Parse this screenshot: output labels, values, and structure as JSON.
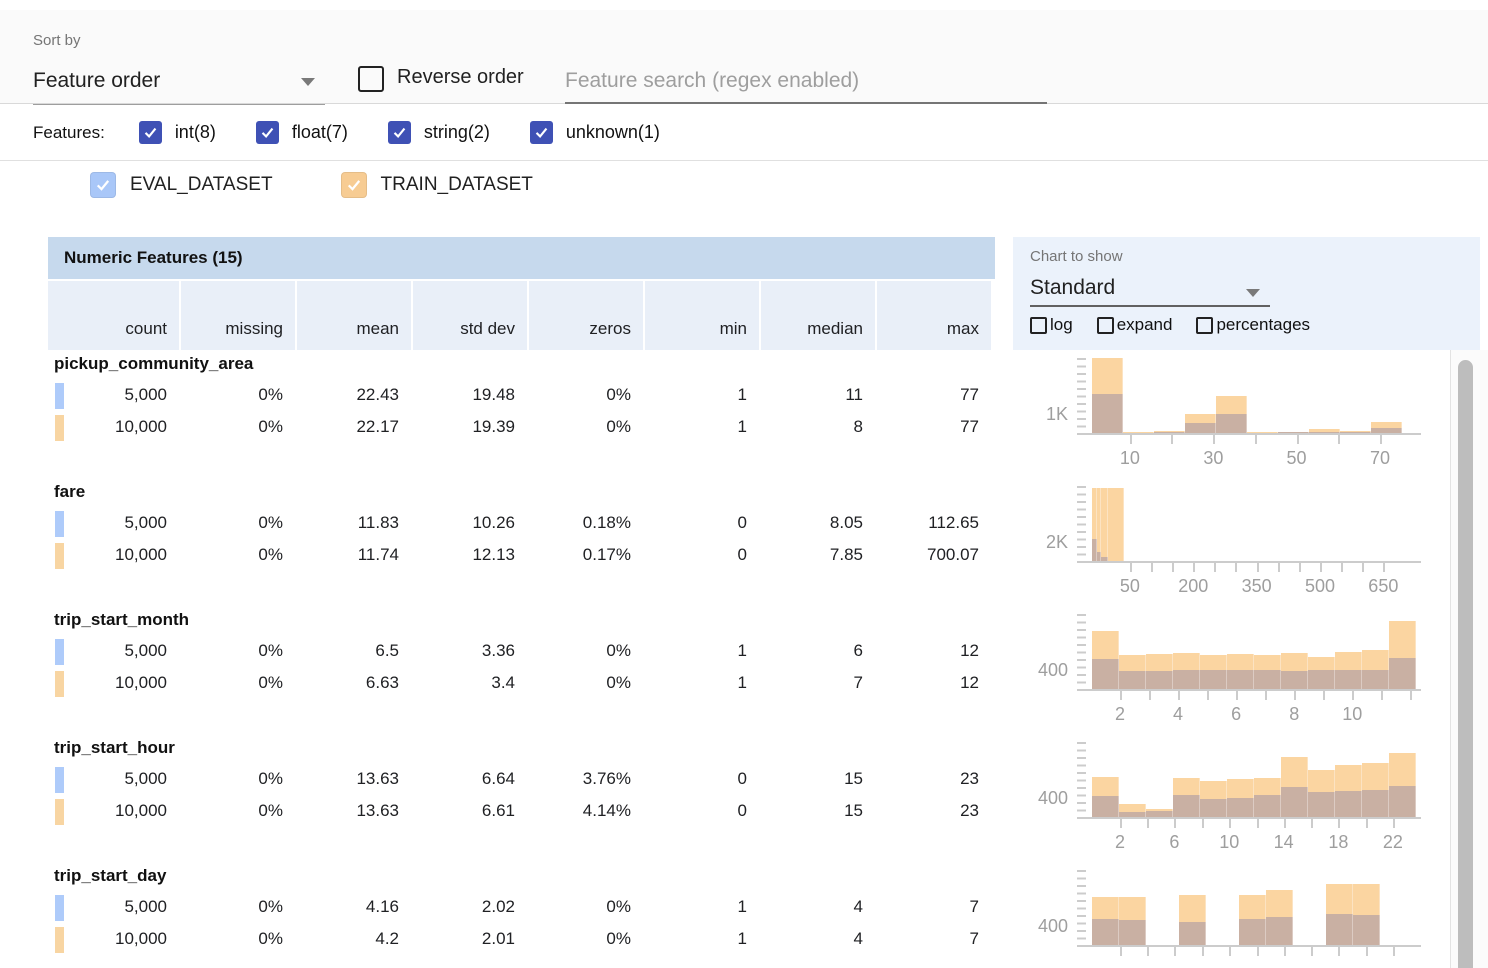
{
  "sort": {
    "label": "Sort by",
    "value": "Feature order",
    "reverse_label": "Reverse order",
    "search_placeholder": "Feature search (regex enabled)"
  },
  "feature_filters": {
    "label": "Features:",
    "items": [
      {
        "label": "int(8)",
        "checked": true
      },
      {
        "label": "float(7)",
        "checked": true
      },
      {
        "label": "string(2)",
        "checked": true
      },
      {
        "label": "unknown(1)",
        "checked": true
      }
    ]
  },
  "datasets": [
    {
      "name": "EVAL_DATASET",
      "color": "#a9c7f8",
      "checked": true
    },
    {
      "name": "TRAIN_DATASET",
      "color": "#f7cc93",
      "checked": true
    }
  ],
  "table": {
    "title": "Numeric Features (15)",
    "columns": [
      "count",
      "missing",
      "mean",
      "std dev",
      "zeros",
      "min",
      "median",
      "max"
    ]
  },
  "chart_controls": {
    "label": "Chart to show",
    "selected": "Standard",
    "options": [
      {
        "label": "log",
        "checked": false
      },
      {
        "label": "expand",
        "checked": false
      },
      {
        "label": "percentages",
        "checked": false
      }
    ]
  },
  "features": [
    {
      "name": "pickup_community_area",
      "stats": [
        [
          "5,000",
          "0%",
          "22.43",
          "19.48",
          "0%",
          "1",
          "11",
          "77"
        ],
        [
          "10,000",
          "0%",
          "22.17",
          "19.39",
          "0%",
          "1",
          "8",
          "77"
        ]
      ],
      "chart": {
        "y_axis_label": "1K",
        "x_tick_positions": [
          0.133,
          0.259,
          0.386,
          0.512,
          0.638,
          0.765,
          0.891
        ],
        "x_tick_labels": [
          "10",
          "",
          "30",
          "",
          "50",
          "",
          "70"
        ],
        "bars": [
          [
            0.018,
            0,
            0
          ],
          [
            0.094,
            1.0,
            0.52
          ],
          [
            0.094,
            0.012,
            0.006
          ],
          [
            0.094,
            0.03,
            0.015
          ],
          [
            0.094,
            0.26,
            0.13
          ],
          [
            0.094,
            0.5,
            0.25
          ],
          [
            0.094,
            0.012,
            0.006
          ],
          [
            0.094,
            0.018,
            0.008
          ],
          [
            0.094,
            0.05,
            0.016
          ],
          [
            0.094,
            0.022,
            0.01
          ],
          [
            0.094,
            0.15,
            0.07
          ]
        ]
      }
    },
    {
      "name": "fare",
      "stats": [
        [
          "5,000",
          "0%",
          "11.83",
          "10.26",
          "0.18%",
          "0",
          "8.05",
          "112.65"
        ],
        [
          "10,000",
          "0%",
          "11.74",
          "12.13",
          "0.17%",
          "0",
          "7.85",
          "700.07"
        ]
      ],
      "chart": {
        "y_axis_label": "2K",
        "x_tick_positions": [
          0.133,
          0.197,
          0.261,
          0.325,
          0.389,
          0.453,
          0.517,
          0.581,
          0.645,
          0.709,
          0.773,
          0.837,
          0.901
        ],
        "x_tick_labels": [
          "50",
          "",
          "",
          "200",
          "",
          "",
          "350",
          "",
          "",
          "500",
          "",
          "",
          "650"
        ],
        "bars": [
          [
            0.018,
            0,
            0
          ],
          [
            0.014,
            0.97,
            0.3
          ],
          [
            0.014,
            0.97,
            0.12
          ],
          [
            0.02,
            0.97,
            0.05
          ],
          [
            0.048,
            0.97,
            0
          ]
        ]
      }
    },
    {
      "name": "trip_start_month",
      "stats": [
        [
          "5,000",
          "0%",
          "6.5",
          "3.36",
          "0%",
          "1",
          "6",
          "12"
        ],
        [
          "10,000",
          "0%",
          "6.63",
          "3.4",
          "0%",
          "1",
          "7",
          "12"
        ]
      ],
      "chart": {
        "y_axis_label": "400",
        "x_tick_positions": [
          0.103,
          0.191,
          0.279,
          0.367,
          0.455,
          0.543,
          0.631,
          0.719,
          0.807,
          0.895,
          0.983
        ],
        "x_tick_labels": [
          "2",
          "",
          "4",
          "",
          "6",
          "",
          "8",
          "",
          "10",
          "",
          ""
        ],
        "bars": [
          [
            0.018,
            0,
            0
          ],
          [
            0.0818,
            0.78,
            0.4
          ],
          [
            0.0818,
            0.45,
            0.24
          ],
          [
            0.0818,
            0.47,
            0.24
          ],
          [
            0.0818,
            0.48,
            0.25
          ],
          [
            0.0818,
            0.46,
            0.26
          ],
          [
            0.0818,
            0.47,
            0.26
          ],
          [
            0.0818,
            0.46,
            0.25
          ],
          [
            0.0818,
            0.48,
            0.24
          ],
          [
            0.0818,
            0.43,
            0.25
          ],
          [
            0.0818,
            0.49,
            0.25
          ],
          [
            0.0818,
            0.52,
            0.26
          ],
          [
            0.0818,
            0.91,
            0.41
          ]
        ]
      }
    },
    {
      "name": "trip_start_hour",
      "stats": [
        [
          "5,000",
          "0%",
          "13.63",
          "6.64",
          "3.76%",
          "0",
          "15",
          "23"
        ],
        [
          "10,000",
          "0%",
          "13.63",
          "6.61",
          "4.14%",
          "0",
          "15",
          "23"
        ]
      ],
      "chart": {
        "y_axis_label": "400",
        "x_tick_positions": [
          0.103,
          0.186,
          0.268,
          0.351,
          0.434,
          0.517,
          0.599,
          0.682,
          0.765,
          0.847,
          0.93
        ],
        "x_tick_labels": [
          "2",
          "",
          "6",
          "",
          "10",
          "",
          "14",
          "",
          "18",
          "",
          "22"
        ],
        "bars": [
          [
            0.018,
            0,
            0
          ],
          [
            0.0818,
            0.54,
            0.28
          ],
          [
            0.0818,
            0.18,
            0.07
          ],
          [
            0.0818,
            0.11,
            0.08
          ],
          [
            0.0818,
            0.52,
            0.3
          ],
          [
            0.0818,
            0.48,
            0.24
          ],
          [
            0.0818,
            0.51,
            0.26
          ],
          [
            0.0818,
            0.52,
            0.3
          ],
          [
            0.0818,
            0.8,
            0.4
          ],
          [
            0.0818,
            0.63,
            0.33
          ],
          [
            0.0818,
            0.7,
            0.35
          ],
          [
            0.0818,
            0.72,
            0.36
          ],
          [
            0.0818,
            0.85,
            0.42
          ]
        ]
      }
    },
    {
      "name": "trip_start_day",
      "stats": [
        [
          "5,000",
          "0%",
          "4.16",
          "2.02",
          "0%",
          "1",
          "4",
          "7"
        ],
        [
          "10,000",
          "0%",
          "4.2",
          "2.01",
          "0%",
          "1",
          "4",
          "7"
        ]
      ],
      "chart": {
        "y_axis_label": "400",
        "x_tick_positions": [
          0.103,
          0.186,
          0.268,
          0.351,
          0.434,
          0.517,
          0.599,
          0.682,
          0.765,
          0.847,
          0.93
        ],
        "x_tick_labels": [
          "",
          "",
          "",
          "",
          "",
          "",
          "",
          "",
          "",
          "",
          ""
        ],
        "bars": [
          [
            0.018,
            0,
            0
          ],
          [
            0.082,
            0.64,
            0.35
          ],
          [
            0.082,
            0.64,
            0.34
          ],
          [
            0.1,
            0,
            0
          ],
          [
            0.082,
            0.67,
            0.31
          ],
          [
            0.1,
            0,
            0
          ],
          [
            0.082,
            0.67,
            0.35
          ],
          [
            0.082,
            0.73,
            0.37
          ],
          [
            0.1,
            0,
            0
          ],
          [
            0.082,
            0.82,
            0.42
          ],
          [
            0.082,
            0.81,
            0.4
          ]
        ]
      }
    }
  ],
  "colors": {
    "eval_swatch": "#aecbfa",
    "train_swatch": "#f8d5a2",
    "bar_train": "#fbd5a1",
    "bar_overlap": "#c9b0a3",
    "indigo_checkbox": "#3f51b5",
    "header_band": "#c6d9ed",
    "subheader_bg": "#e9eff8",
    "panel_bg": "#ebf2fb",
    "tick_text": "#9e9e9e"
  }
}
